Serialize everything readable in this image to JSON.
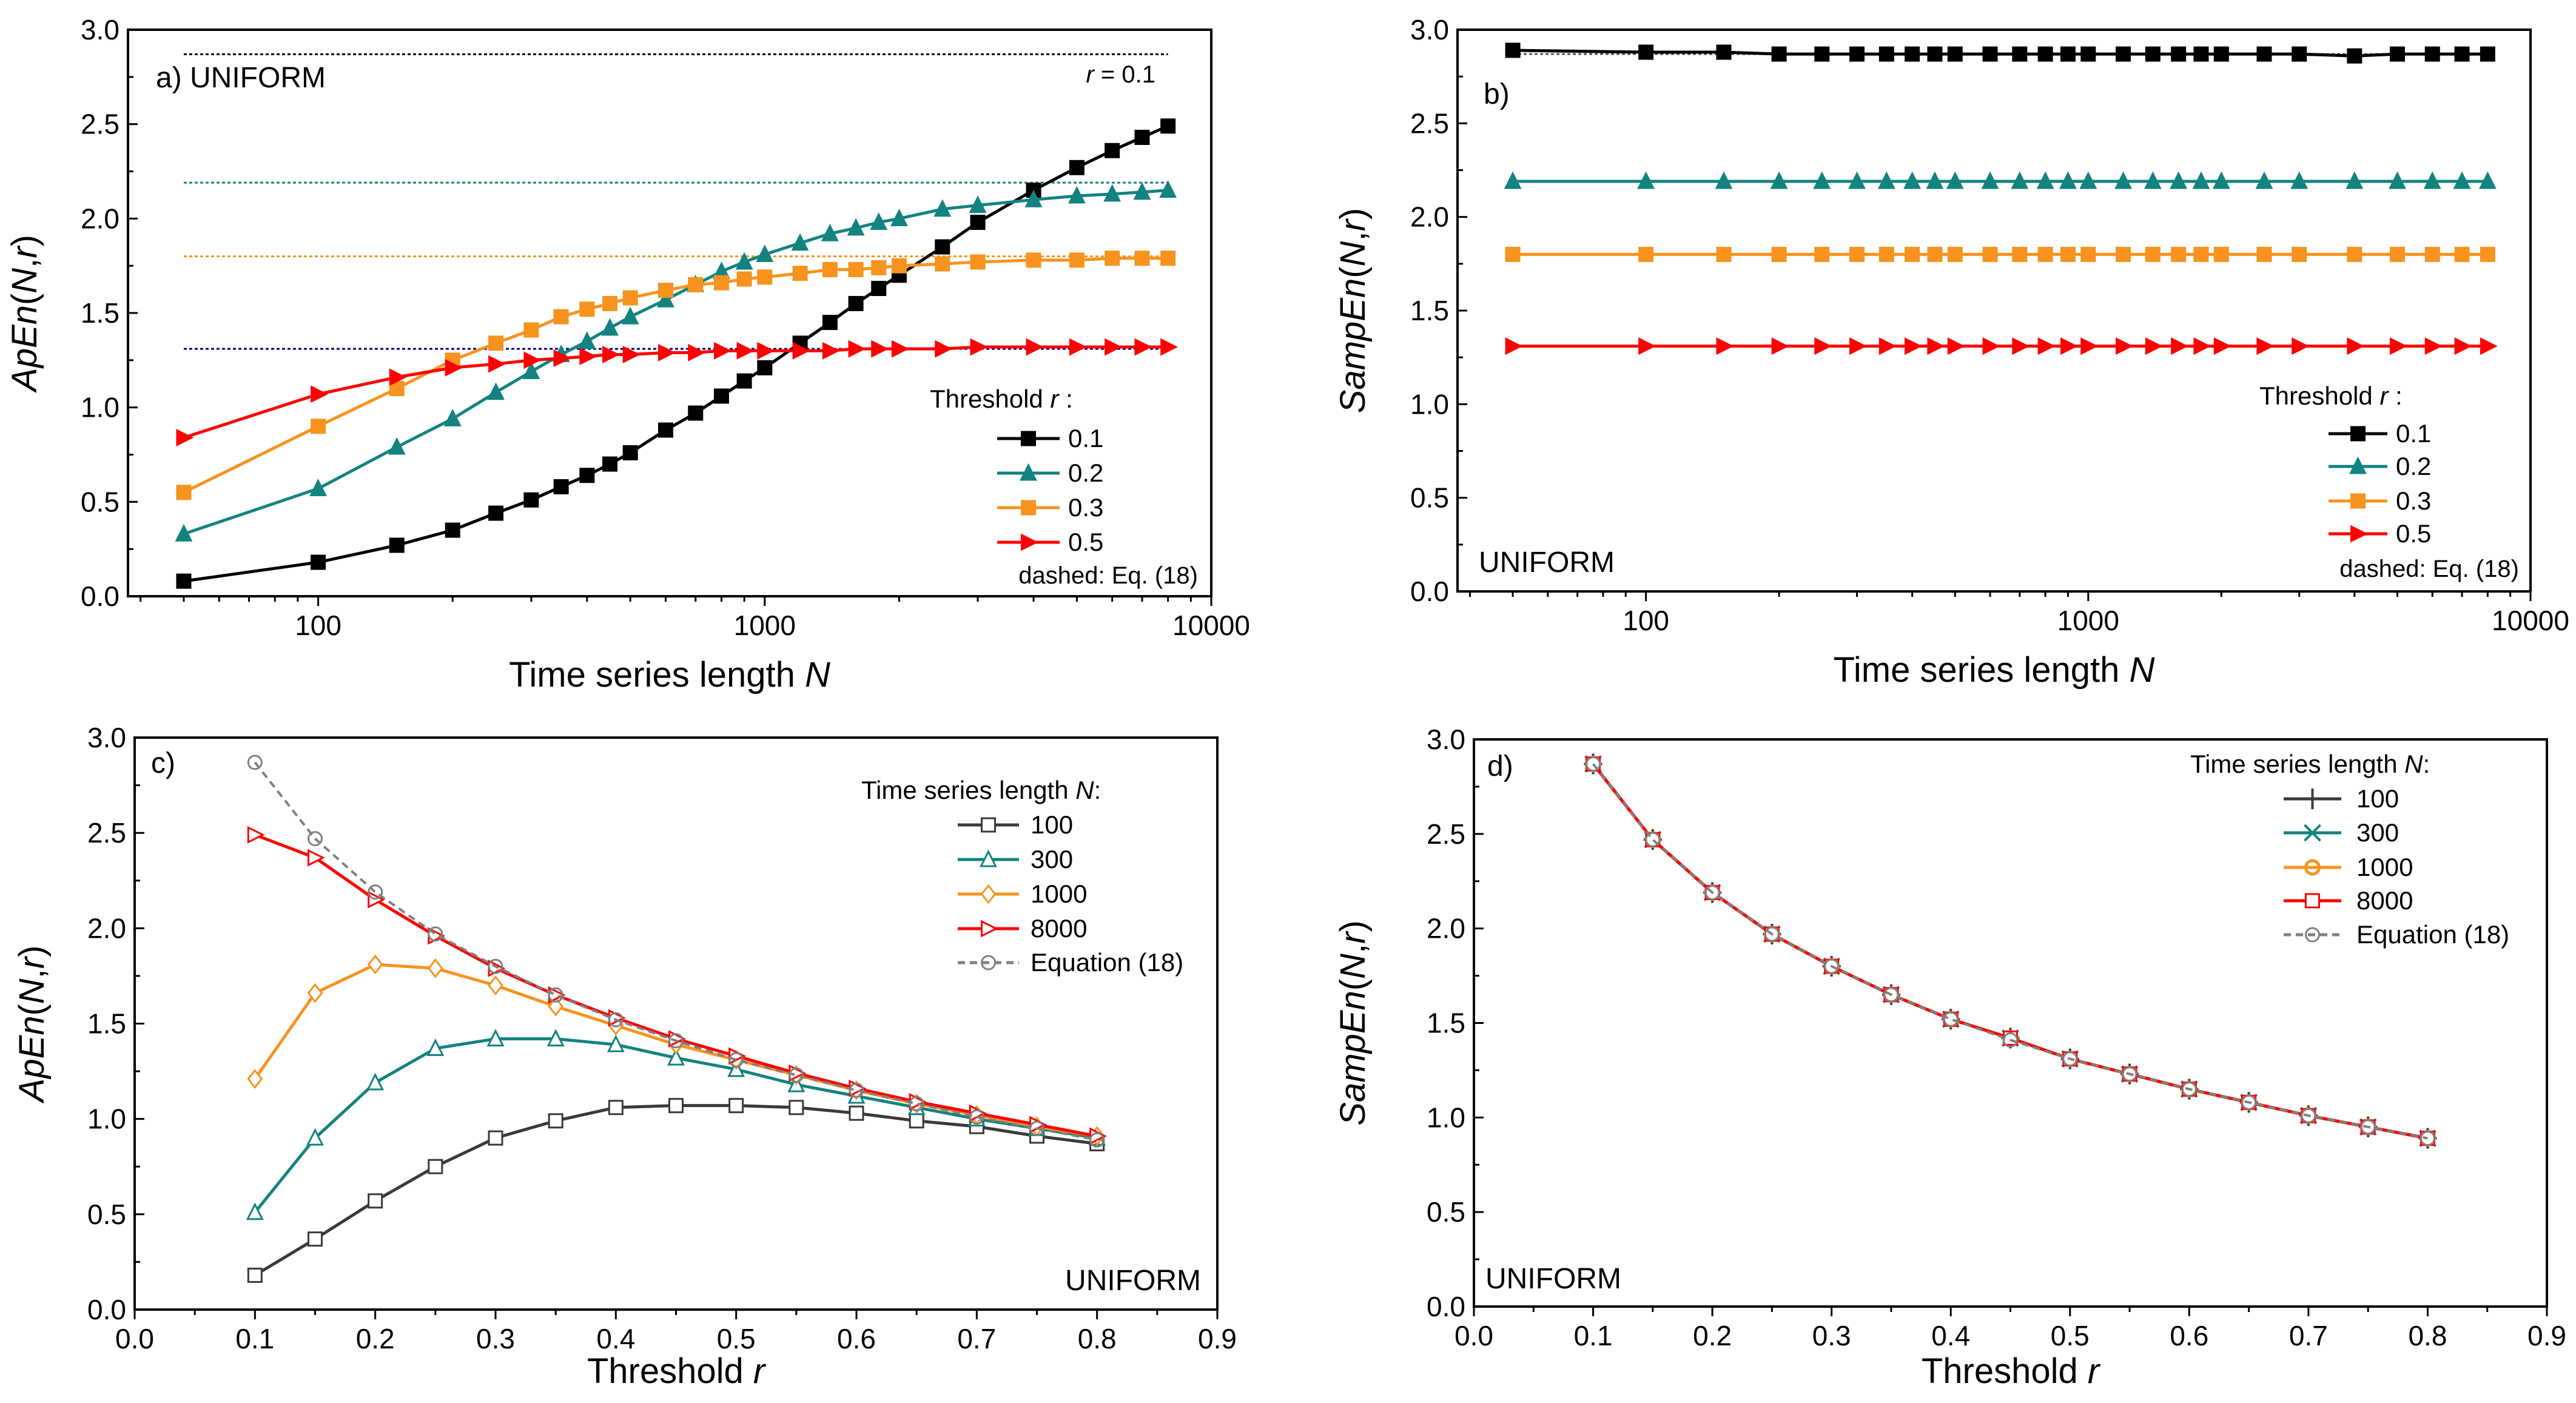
{
  "chart_data": [
    {
      "type": "line",
      "panel_label": "a)",
      "panel_text": "a) UNIFORM",
      "annotation": "r = 0.1",
      "xscale": "log",
      "xlim": [
        37.5,
        10000
      ],
      "ylim": [
        0,
        3
      ],
      "xticks": [
        100,
        1000,
        10000
      ],
      "xtick_labels": [
        "100",
        "1000",
        "10000"
      ],
      "yticks": [
        0,
        0.5,
        1,
        1.5,
        2,
        2.5,
        3
      ],
      "ytick_labels": [
        "0.0",
        "0.5",
        "1.0",
        "1.5",
        "2.0",
        "2.5",
        "3.0"
      ],
      "xlabel": "Time series length N",
      "ylabel": "ApEn(N,r)",
      "legend_title": "Threshold r :",
      "legend_note": "dashed: Eq. (18)",
      "legend_placement": "bottom-right",
      "x": [
        50,
        100,
        150,
        200,
        250,
        300,
        350,
        400,
        450,
        500,
        600,
        700,
        800,
        900,
        1000,
        1200,
        1400,
        1600,
        1800,
        2000,
        2500,
        3000,
        4000,
        5000,
        6000,
        7000,
        8000
      ],
      "series": [
        {
          "name": "0.1",
          "color": "#000000",
          "marker": "square-filled",
          "values": [
            0.08,
            0.18,
            0.27,
            0.35,
            0.44,
            0.51,
            0.58,
            0.64,
            0.7,
            0.76,
            0.88,
            0.97,
            1.06,
            1.14,
            1.21,
            1.34,
            1.45,
            1.55,
            1.63,
            1.7,
            1.85,
            1.98,
            2.15,
            2.27,
            2.36,
            2.43,
            2.49
          ]
        },
        {
          "name": "0.2",
          "color": "#13837f",
          "marker": "triangle-up-filled",
          "values": [
            0.33,
            0.57,
            0.79,
            0.94,
            1.08,
            1.19,
            1.28,
            1.35,
            1.42,
            1.48,
            1.57,
            1.65,
            1.72,
            1.77,
            1.81,
            1.87,
            1.92,
            1.95,
            1.98,
            2.0,
            2.05,
            2.07,
            2.1,
            2.12,
            2.13,
            2.14,
            2.15
          ]
        },
        {
          "name": "0.3",
          "color": "#f7931e",
          "marker": "square-filled",
          "values": [
            0.55,
            0.9,
            1.1,
            1.25,
            1.34,
            1.41,
            1.48,
            1.52,
            1.55,
            1.58,
            1.62,
            1.65,
            1.66,
            1.68,
            1.69,
            1.71,
            1.73,
            1.73,
            1.74,
            1.75,
            1.76,
            1.77,
            1.78,
            1.78,
            1.79,
            1.79,
            1.79
          ]
        },
        {
          "name": "0.5",
          "color": "#ff0000",
          "marker": "triangle-right-filled",
          "values": [
            0.84,
            1.07,
            1.16,
            1.21,
            1.23,
            1.25,
            1.26,
            1.27,
            1.28,
            1.28,
            1.29,
            1.29,
            1.3,
            1.3,
            1.3,
            1.3,
            1.3,
            1.31,
            1.31,
            1.31,
            1.31,
            1.32,
            1.32,
            1.32,
            1.32,
            1.32,
            1.32
          ]
        }
      ],
      "reference_lines": [
        {
          "name": "Eq. (18) r=0.1",
          "color": "#000000",
          "y": 2.87
        },
        {
          "name": "Eq. (18) r=0.2",
          "color": "#13837f",
          "y": 2.19
        },
        {
          "name": "Eq. (18) r=0.3",
          "color": "#f7931e",
          "y": 1.8
        },
        {
          "name": "Eq. (18) r=0.5",
          "color": "#00008b",
          "y": 1.31
        }
      ]
    },
    {
      "type": "line",
      "panel_label": "b)",
      "panel_text": "b)",
      "corner_text": "UNIFORM",
      "xscale": "log",
      "xlim": [
        37.5,
        10000
      ],
      "ylim": [
        0,
        3
      ],
      "xticks": [
        100,
        1000,
        10000
      ],
      "xtick_labels": [
        "100",
        "1000",
        "10000"
      ],
      "yticks": [
        0,
        0.5,
        1,
        1.5,
        2,
        2.5,
        3
      ],
      "ytick_labels": [
        "0.0",
        "0.5",
        "1.0",
        "1.5",
        "2.0",
        "2.5",
        "3.0"
      ],
      "xlabel": "Time series length N",
      "ylabel": "SampEn(N,r)",
      "legend_title": "Threshold r :",
      "legend_note": "dashed: Eq. (18)",
      "legend_placement": "bottom-right",
      "x": [
        50,
        100,
        150,
        200,
        250,
        300,
        350,
        400,
        450,
        500,
        600,
        700,
        800,
        900,
        1000,
        1200,
        1400,
        1600,
        1800,
        2000,
        2500,
        3000,
        4000,
        5000,
        6000,
        7000,
        8000
      ],
      "series": [
        {
          "name": "0.1",
          "color": "#000000",
          "marker": "square-filled",
          "values": [
            2.89,
            2.88,
            2.88,
            2.87,
            2.87,
            2.87,
            2.87,
            2.87,
            2.87,
            2.87,
            2.87,
            2.87,
            2.87,
            2.87,
            2.87,
            2.87,
            2.87,
            2.87,
            2.87,
            2.87,
            2.87,
            2.87,
            2.86,
            2.87,
            2.87,
            2.87,
            2.87
          ]
        },
        {
          "name": "0.2",
          "color": "#13837f",
          "marker": "triangle-up-filled",
          "values": [
            2.19,
            2.19,
            2.19,
            2.19,
            2.19,
            2.19,
            2.19,
            2.19,
            2.19,
            2.19,
            2.19,
            2.19,
            2.19,
            2.19,
            2.19,
            2.19,
            2.19,
            2.19,
            2.19,
            2.19,
            2.19,
            2.19,
            2.19,
            2.19,
            2.19,
            2.19,
            2.19
          ]
        },
        {
          "name": "0.3",
          "color": "#f7931e",
          "marker": "square-filled",
          "values": [
            1.8,
            1.8,
            1.8,
            1.8,
            1.8,
            1.8,
            1.8,
            1.8,
            1.8,
            1.8,
            1.8,
            1.8,
            1.8,
            1.8,
            1.8,
            1.8,
            1.8,
            1.8,
            1.8,
            1.8,
            1.8,
            1.8,
            1.8,
            1.8,
            1.8,
            1.8,
            1.8
          ]
        },
        {
          "name": "0.5",
          "color": "#ff0000",
          "marker": "triangle-right-filled",
          "values": [
            1.31,
            1.31,
            1.31,
            1.31,
            1.31,
            1.31,
            1.31,
            1.31,
            1.31,
            1.31,
            1.31,
            1.31,
            1.31,
            1.31,
            1.31,
            1.31,
            1.31,
            1.31,
            1.31,
            1.31,
            1.31,
            1.31,
            1.31,
            1.31,
            1.31,
            1.31,
            1.31
          ]
        }
      ],
      "reference_lines": [
        {
          "name": "Eq. (18) r=0.1",
          "color": "#555555",
          "y": 2.87
        },
        {
          "name": "Eq. (18) r=0.2",
          "color": "#555555",
          "y": 2.19
        },
        {
          "name": "Eq. (18) r=0.3",
          "color": "#555555",
          "y": 1.8
        },
        {
          "name": "Eq. (18) r=0.5",
          "color": "#555555",
          "y": 1.31
        }
      ]
    },
    {
      "type": "line",
      "panel_label": "c)",
      "panel_text": "c)",
      "corner_text": "UNIFORM",
      "xscale": "linear",
      "xlim": [
        0,
        0.9
      ],
      "ylim": [
        0,
        3
      ],
      "xticks": [
        0,
        0.1,
        0.2,
        0.3,
        0.4,
        0.5,
        0.6,
        0.7,
        0.8,
        0.9
      ],
      "xtick_labels": [
        "0.0",
        "0.1",
        "0.2",
        "0.3",
        "0.4",
        "0.5",
        "0.6",
        "0.7",
        "0.8",
        "0.9"
      ],
      "yticks": [
        0,
        0.5,
        1,
        1.5,
        2,
        2.5,
        3
      ],
      "ytick_labels": [
        "0.0",
        "0.5",
        "1.0",
        "1.5",
        "2.0",
        "2.5",
        "3.0"
      ],
      "xlabel": "Threshold r",
      "ylabel": "ApEn(N,r)",
      "legend_title": "Time series length N:",
      "legend_placement": "top-right",
      "x": [
        0.1,
        0.15,
        0.2,
        0.25,
        0.3,
        0.35,
        0.4,
        0.45,
        0.5,
        0.55,
        0.6,
        0.65,
        0.7,
        0.75,
        0.8
      ],
      "series": [
        {
          "name": "100",
          "color": "#3a3a3a",
          "marker": "square-open",
          "values": [
            0.18,
            0.37,
            0.57,
            0.75,
            0.9,
            0.99,
            1.06,
            1.07,
            1.07,
            1.06,
            1.03,
            0.99,
            0.96,
            0.91,
            0.87
          ]
        },
        {
          "name": "300",
          "color": "#13837f",
          "marker": "triangle-up-open",
          "values": [
            0.51,
            0.9,
            1.19,
            1.37,
            1.42,
            1.42,
            1.39,
            1.32,
            1.26,
            1.18,
            1.12,
            1.06,
            1.0,
            0.95,
            0.9
          ]
        },
        {
          "name": "1000",
          "color": "#f7931e",
          "marker": "diamond-open",
          "values": [
            1.21,
            1.66,
            1.81,
            1.79,
            1.7,
            1.59,
            1.49,
            1.39,
            1.31,
            1.23,
            1.15,
            1.08,
            1.02,
            0.96,
            0.91
          ]
        },
        {
          "name": "8000",
          "color": "#ff0000",
          "marker": "triangle-right-open",
          "values": [
            2.49,
            2.37,
            2.15,
            1.96,
            1.79,
            1.65,
            1.53,
            1.42,
            1.33,
            1.24,
            1.16,
            1.09,
            1.03,
            0.97,
            0.91
          ]
        },
        {
          "name": "Equation (18)",
          "color": "#808080",
          "marker": "circle-open",
          "dashed": true,
          "values": [
            2.87,
            2.47,
            2.19,
            1.97,
            1.8,
            1.65,
            1.52,
            1.41,
            1.31,
            1.23,
            1.15,
            1.08,
            1.01,
            0.95,
            0.89
          ]
        }
      ]
    },
    {
      "type": "line",
      "panel_label": "d)",
      "panel_text": "d)",
      "corner_text": "UNIFORM",
      "xscale": "linear",
      "xlim": [
        0,
        0.9
      ],
      "ylim": [
        0,
        3
      ],
      "xticks": [
        0,
        0.1,
        0.2,
        0.3,
        0.4,
        0.5,
        0.6,
        0.7,
        0.8,
        0.9
      ],
      "xtick_labels": [
        "0.0",
        "0.1",
        "0.2",
        "0.3",
        "0.4",
        "0.5",
        "0.6",
        "0.7",
        "0.8",
        "0.9"
      ],
      "yticks": [
        0,
        0.5,
        1,
        1.5,
        2,
        2.5,
        3
      ],
      "ytick_labels": [
        "0.0",
        "0.5",
        "1.0",
        "1.5",
        "2.0",
        "2.5",
        "3.0"
      ],
      "xlabel": "Threshold r",
      "ylabel": "SampEn(N,r)",
      "legend_title": "Time series length N:",
      "legend_placement": "top-right",
      "x": [
        0.1,
        0.15,
        0.2,
        0.25,
        0.3,
        0.35,
        0.4,
        0.45,
        0.5,
        0.55,
        0.6,
        0.65,
        0.7,
        0.75,
        0.8
      ],
      "series": [
        {
          "name": "100",
          "color": "#3a3a3a",
          "marker": "plus",
          "values": [
            2.87,
            2.47,
            2.19,
            1.97,
            1.8,
            1.65,
            1.52,
            1.42,
            1.31,
            1.23,
            1.15,
            1.08,
            1.01,
            0.95,
            0.89
          ]
        },
        {
          "name": "300",
          "color": "#13837f",
          "marker": "cross",
          "values": [
            2.87,
            2.47,
            2.19,
            1.97,
            1.8,
            1.65,
            1.52,
            1.42,
            1.31,
            1.23,
            1.15,
            1.08,
            1.01,
            0.95,
            0.89
          ]
        },
        {
          "name": "1000",
          "color": "#f7931e",
          "marker": "circle-open-thick",
          "values": [
            2.87,
            2.47,
            2.19,
            1.97,
            1.8,
            1.65,
            1.52,
            1.42,
            1.31,
            1.23,
            1.15,
            1.08,
            1.01,
            0.95,
            0.89
          ]
        },
        {
          "name": "8000",
          "color": "#ff0000",
          "marker": "square-open",
          "values": [
            2.87,
            2.47,
            2.19,
            1.97,
            1.8,
            1.65,
            1.52,
            1.42,
            1.31,
            1.23,
            1.15,
            1.08,
            1.01,
            0.95,
            0.89
          ]
        },
        {
          "name": "Equation (18)",
          "color": "#808080",
          "marker": "circle-open",
          "dashed": true,
          "values": [
            2.87,
            2.47,
            2.19,
            1.97,
            1.8,
            1.65,
            1.52,
            1.41,
            1.31,
            1.23,
            1.15,
            1.08,
            1.01,
            0.95,
            0.89
          ]
        }
      ]
    }
  ]
}
